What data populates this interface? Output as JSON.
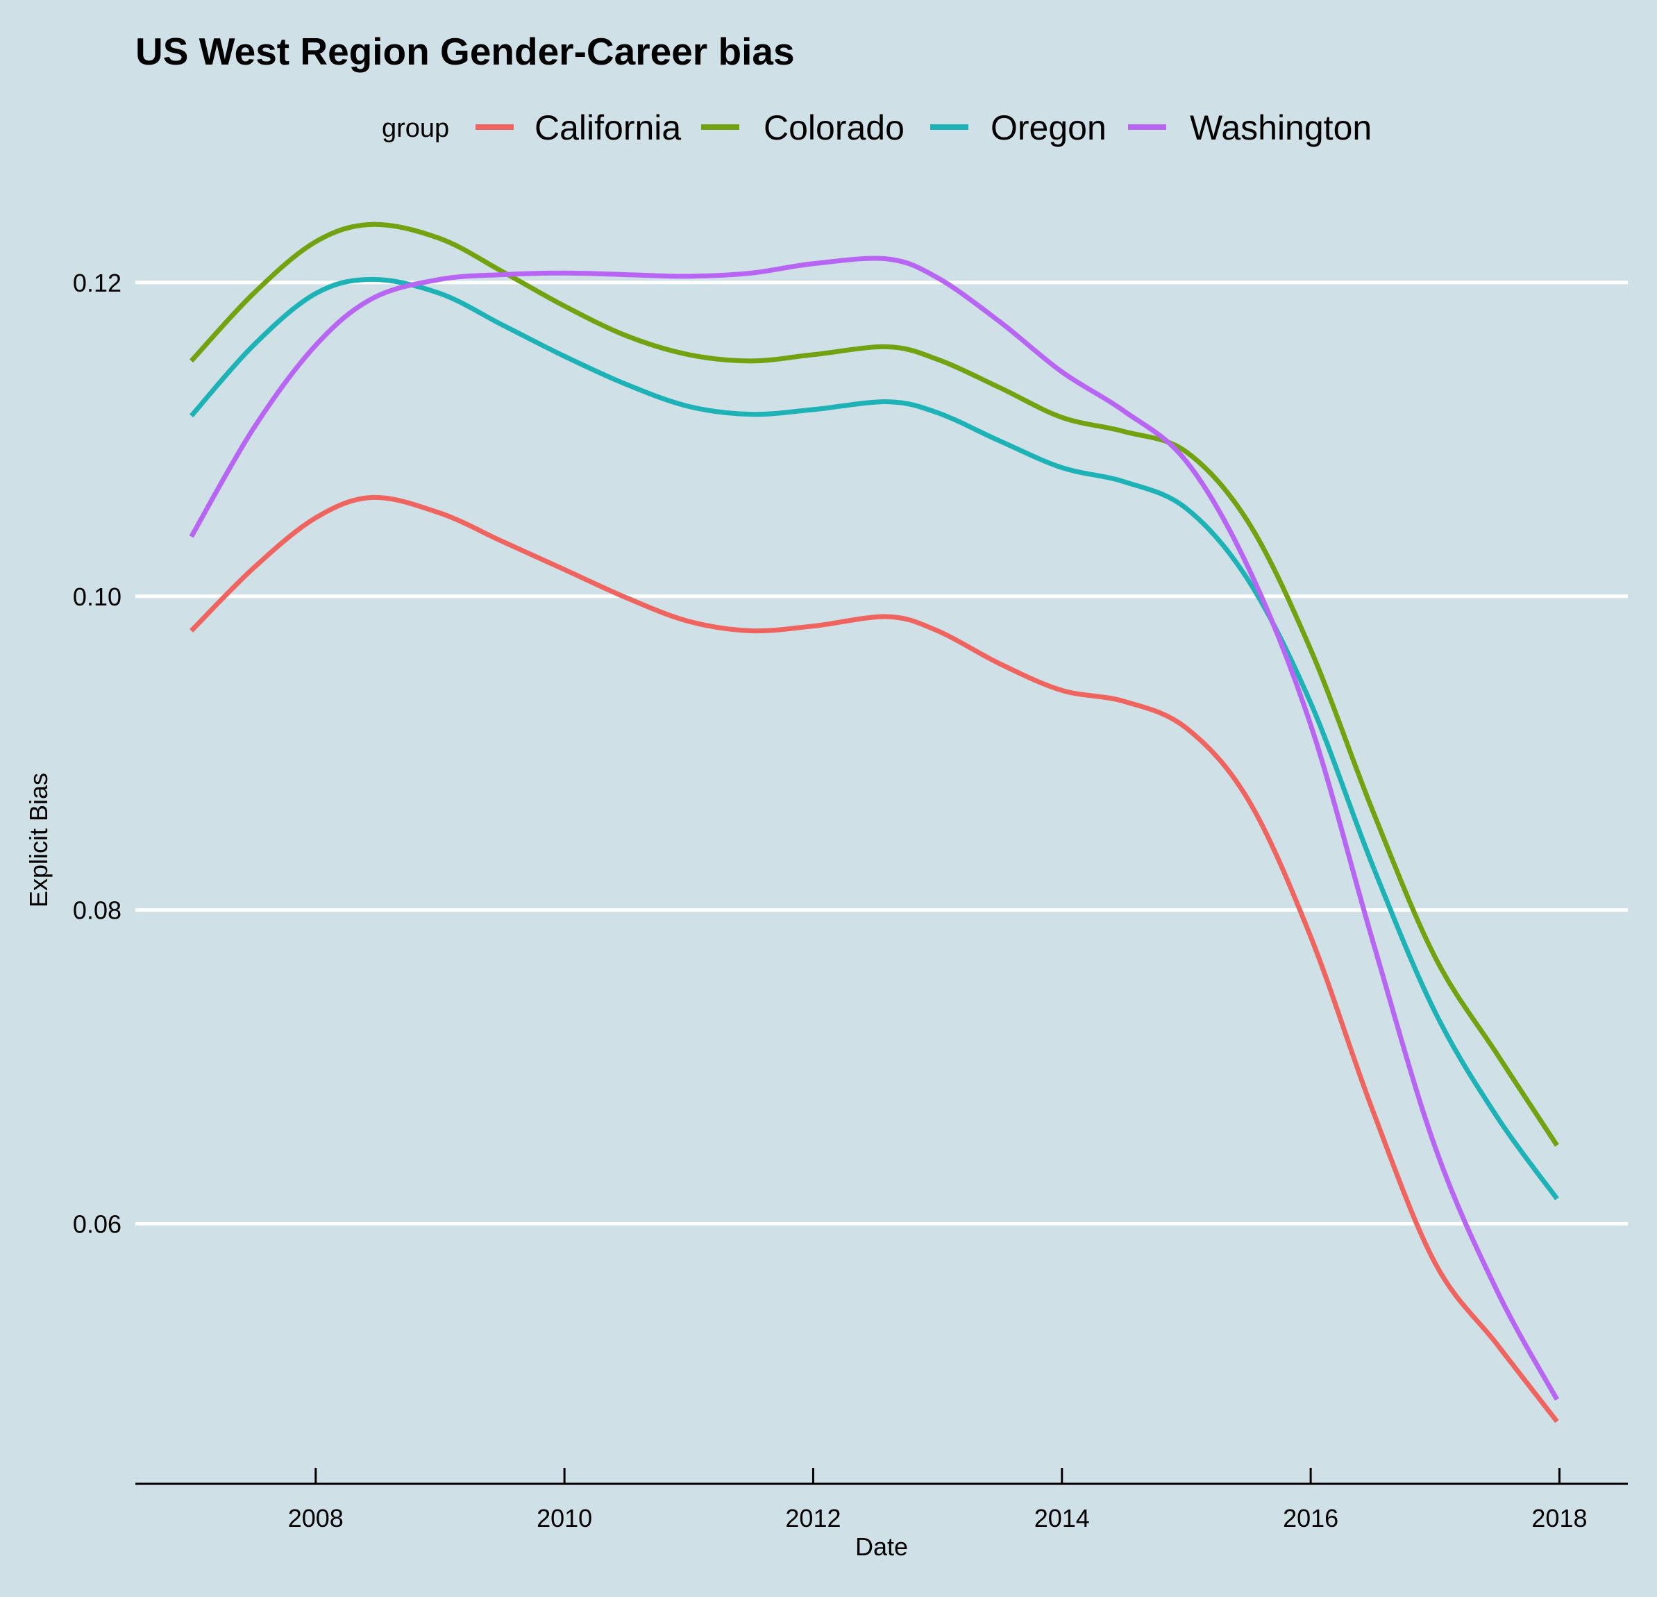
{
  "chart_data": {
    "type": "line",
    "title": "US West Region Gender-Career bias",
    "xlabel": "Date",
    "ylabel": "Explicit Bias",
    "legend_title": "group",
    "legend_position": "top",
    "grid": "horizontal-major",
    "xlim": [
      2006.55,
      2018.55
    ],
    "ylim": [
      0.0444,
      0.1265
    ],
    "x_ticks": [
      2008,
      2010,
      2012,
      2014,
      2016,
      2018
    ],
    "x_tick_labels": [
      "2008",
      "2010",
      "2012",
      "2014",
      "2016",
      "2018"
    ],
    "y_ticks": [
      0.06,
      0.08,
      0.1,
      0.12
    ],
    "y_tick_labels": [
      "0.06",
      "0.08",
      "0.10",
      "0.12"
    ],
    "x": [
      2007.0,
      2007.5,
      2008.0,
      2008.46,
      2009.0,
      2009.5,
      2010.0,
      2010.5,
      2011.0,
      2011.5,
      2012.0,
      2012.6,
      2013.0,
      2013.5,
      2014.0,
      2014.5,
      2015.0,
      2015.5,
      2016.0,
      2016.5,
      2017.0,
      2017.5,
      2017.98
    ],
    "series": [
      {
        "name": "California",
        "color": "#f0645f",
        "values": [
          0.0978,
          0.1018,
          0.105,
          0.1063,
          0.1053,
          0.1035,
          0.1017,
          0.0999,
          0.0984,
          0.0978,
          0.0981,
          0.0987,
          0.0978,
          0.0957,
          0.094,
          0.0933,
          0.0916,
          0.087,
          0.0783,
          0.0672,
          0.0575,
          0.0523,
          0.0474
        ]
      },
      {
        "name": "Colorado",
        "color": "#72a20f",
        "values": [
          0.115,
          0.1193,
          0.1226,
          0.1237,
          0.1228,
          0.1207,
          0.1185,
          0.1166,
          0.1154,
          0.115,
          0.1154,
          0.1159,
          0.1151,
          0.1133,
          0.1114,
          0.1105,
          0.1092,
          0.1047,
          0.0966,
          0.0863,
          0.077,
          0.0708,
          0.065
        ]
      },
      {
        "name": "Oregon",
        "color": "#1db2b6",
        "values": [
          0.1115,
          0.116,
          0.1193,
          0.1202,
          0.1193,
          0.1173,
          0.1153,
          0.1135,
          0.1121,
          0.1116,
          0.1119,
          0.1124,
          0.1117,
          0.1099,
          0.1082,
          0.1073,
          0.1056,
          0.101,
          0.0932,
          0.0828,
          0.0735,
          0.0668,
          0.0616
        ]
      },
      {
        "name": "Washington",
        "color": "#b865f4",
        "values": [
          0.1038,
          0.1107,
          0.116,
          0.119,
          0.1202,
          0.1205,
          0.1206,
          0.1205,
          0.1204,
          0.1206,
          0.1212,
          0.1215,
          0.1203,
          0.1175,
          0.1143,
          0.1118,
          0.1086,
          0.1018,
          0.0918,
          0.078,
          0.0649,
          0.0557,
          0.0488
        ]
      }
    ]
  }
}
